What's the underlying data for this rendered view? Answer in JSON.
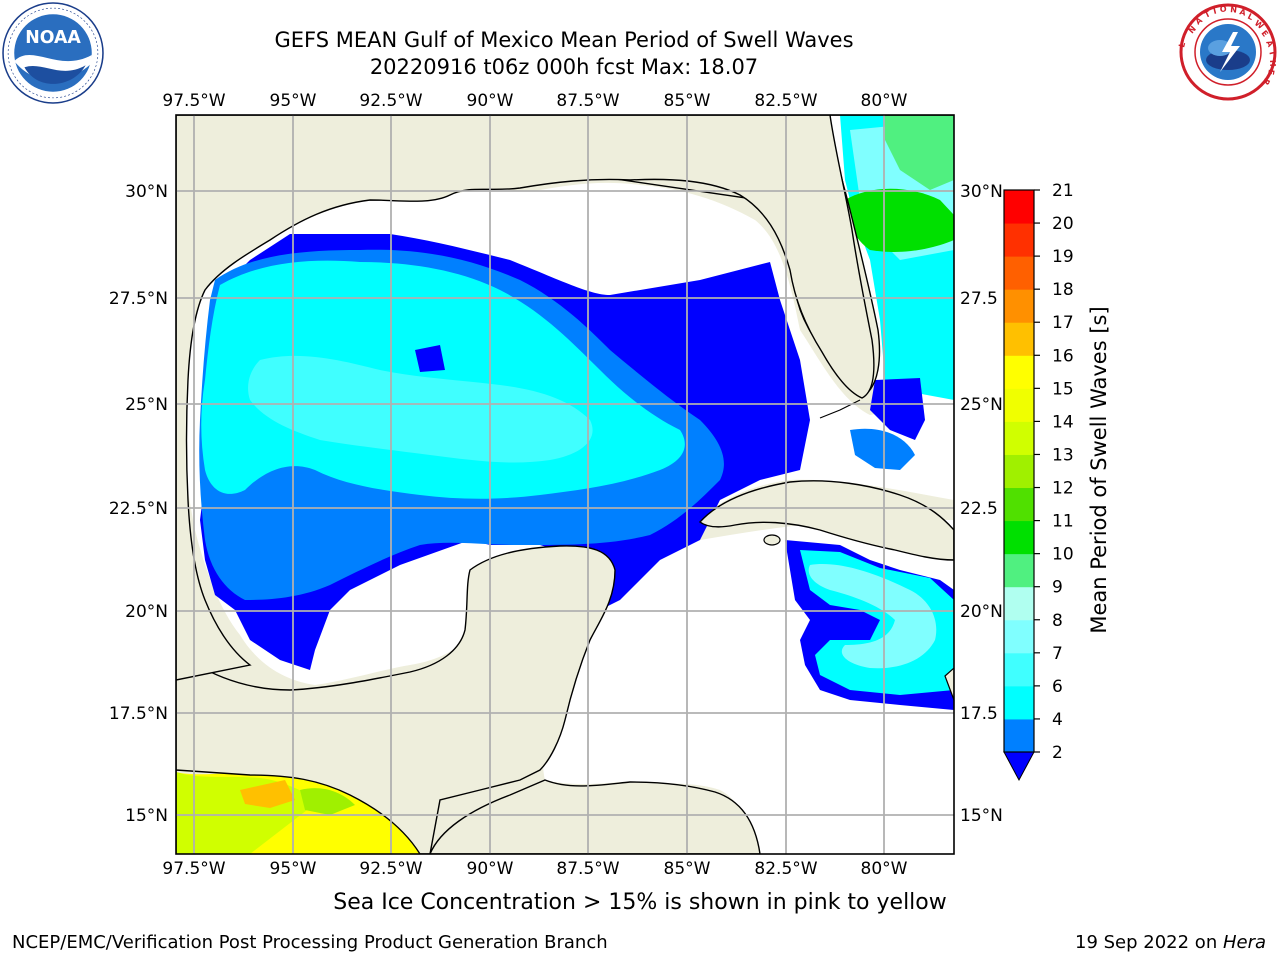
{
  "header": {
    "title": "GEFS MEAN Gulf of Mexico Mean Period of Swell Waves",
    "subtitle": "20220916 t06z 000h fcst   Max: 18.07"
  },
  "logos": {
    "left": "noaa-logo",
    "right": "national-weather-service-logo"
  },
  "map": {
    "projection": "lat-lon",
    "lon_ticks": [
      "97.5°W",
      "95°W",
      "92.5°W",
      "90°W",
      "87.5°W",
      "85°W",
      "82.5°W",
      "80°W"
    ],
    "lat_ticks": [
      "30°N",
      "27.5°N",
      "25°N",
      "22.5°N",
      "20°N",
      "17.5°N",
      "15°N"
    ],
    "lat_ticks_right": [
      "30°N",
      "27.5",
      "25°N",
      "22.5",
      "20°N",
      "17.5",
      "15°N"
    ],
    "land_color": "#eeeedc",
    "ocean_missing_color": "#ffffff",
    "grid": true
  },
  "colorbar": {
    "label": "Mean Period of Swell Waves [s]",
    "ticks": [
      "2",
      "4",
      "6",
      "7",
      "8",
      "9",
      "10",
      "11",
      "12",
      "13",
      "14",
      "15",
      "16",
      "17",
      "18",
      "19",
      "20",
      "21"
    ],
    "extend": "min",
    "colors": [
      "#0000ff",
      "#0080ff",
      "#00ffff",
      "#40ffff",
      "#80ffff",
      "#b0fff0",
      "#50f080",
      "#00e000",
      "#50e000",
      "#a0f000",
      "#d0ff00",
      "#f0ff00",
      "#ffff00",
      "#ffc000",
      "#ff9000",
      "#ff6000",
      "#ff3000",
      "#ff0000"
    ],
    "arrow_color": "#0000ff"
  },
  "footer": {
    "note": "Sea Ice Concentration > 15% is shown in pink to yellow",
    "credit": "NCEP/EMC/Verification Post Processing Product Generation Branch",
    "date": "19 Sep 2022 on ",
    "host": "Hera"
  }
}
